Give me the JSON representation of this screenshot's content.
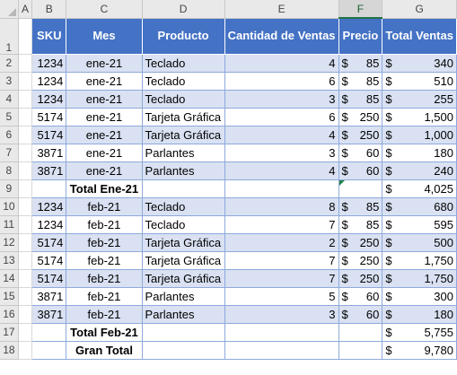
{
  "columns": [
    "A",
    "B",
    "C",
    "D",
    "E",
    "F",
    "G"
  ],
  "headers": {
    "sku": "SKU",
    "mes": "Mes",
    "producto": "Producto",
    "cantidad": "Cantidad de Ventas",
    "precio": "Precio",
    "total": "Total Ventas"
  },
  "row_numbers": [
    "1",
    "2",
    "3",
    "4",
    "5",
    "6",
    "7",
    "8",
    "9",
    "10",
    "11",
    "12",
    "13",
    "14",
    "15",
    "16",
    "17",
    "18"
  ],
  "rows": [
    {
      "sku": "1234",
      "mes": "ene-21",
      "producto": "Teclado",
      "cantidad": "4",
      "precio": "85",
      "total": "340"
    },
    {
      "sku": "1234",
      "mes": "ene-21",
      "producto": "Teclado",
      "cantidad": "6",
      "precio": "85",
      "total": "510"
    },
    {
      "sku": "1234",
      "mes": "ene-21",
      "producto": "Teclado",
      "cantidad": "3",
      "precio": "85",
      "total": "255"
    },
    {
      "sku": "5174",
      "mes": "ene-21",
      "producto": "Tarjeta Gráfica",
      "cantidad": "6",
      "precio": "250",
      "total": "1,500"
    },
    {
      "sku": "5174",
      "mes": "ene-21",
      "producto": "Tarjeta Gráfica",
      "cantidad": "4",
      "precio": "250",
      "total": "1,000"
    },
    {
      "sku": "3871",
      "mes": "ene-21",
      "producto": "Parlantes",
      "cantidad": "3",
      "precio": "60",
      "total": "180"
    },
    {
      "sku": "3871",
      "mes": "ene-21",
      "producto": "Parlantes",
      "cantidad": "4",
      "precio": "60",
      "total": "240"
    },
    {
      "subtotal_label": "Total Ene-21",
      "total": "4,025"
    },
    {
      "sku": "1234",
      "mes": "feb-21",
      "producto": "Teclado",
      "cantidad": "8",
      "precio": "85",
      "total": "680"
    },
    {
      "sku": "1234",
      "mes": "feb-21",
      "producto": "Teclado",
      "cantidad": "7",
      "precio": "85",
      "total": "595"
    },
    {
      "sku": "5174",
      "mes": "feb-21",
      "producto": "Tarjeta Gráfica",
      "cantidad": "2",
      "precio": "250",
      "total": "500"
    },
    {
      "sku": "5174",
      "mes": "feb-21",
      "producto": "Tarjeta Gráfica",
      "cantidad": "7",
      "precio": "250",
      "total": "1,750"
    },
    {
      "sku": "5174",
      "mes": "feb-21",
      "producto": "Tarjeta Gráfica",
      "cantidad": "7",
      "precio": "250",
      "total": "1,750"
    },
    {
      "sku": "3871",
      "mes": "feb-21",
      "producto": "Parlantes",
      "cantidad": "5",
      "precio": "60",
      "total": "300"
    },
    {
      "sku": "3871",
      "mes": "feb-21",
      "producto": "Parlantes",
      "cantidad": "3",
      "precio": "60",
      "total": "180"
    },
    {
      "subtotal_label": "Total Feb-21",
      "total": "5,755"
    },
    {
      "subtotal_label": "Gran Total",
      "total": "9,780"
    }
  ],
  "currency_symbol": "$",
  "colors": {
    "header_blue": "#4472c4",
    "band_blue": "#d9e1f2",
    "excel_green": "#217346"
  }
}
